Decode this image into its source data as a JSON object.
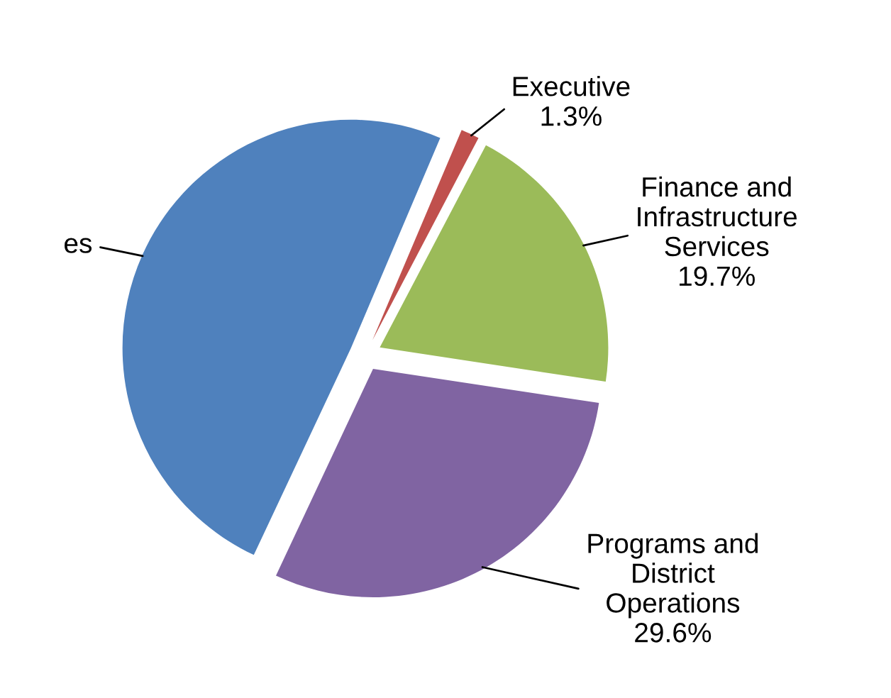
{
  "chart_data": {
    "type": "pie",
    "categories": [
      "Executive",
      "Finance and\nInfrastructure\nServices",
      "Programs and\nDistrict\nOperations",
      "es"
    ],
    "values": [
      1.3,
      19.7,
      29.6,
      49.4
    ],
    "value_labels": [
      "1.3%",
      "19.7%",
      "29.6%",
      null
    ],
    "colors": [
      "#c0504d",
      "#9bbb59",
      "#8064a2",
      "#4f81bd"
    ],
    "legend": false
  }
}
